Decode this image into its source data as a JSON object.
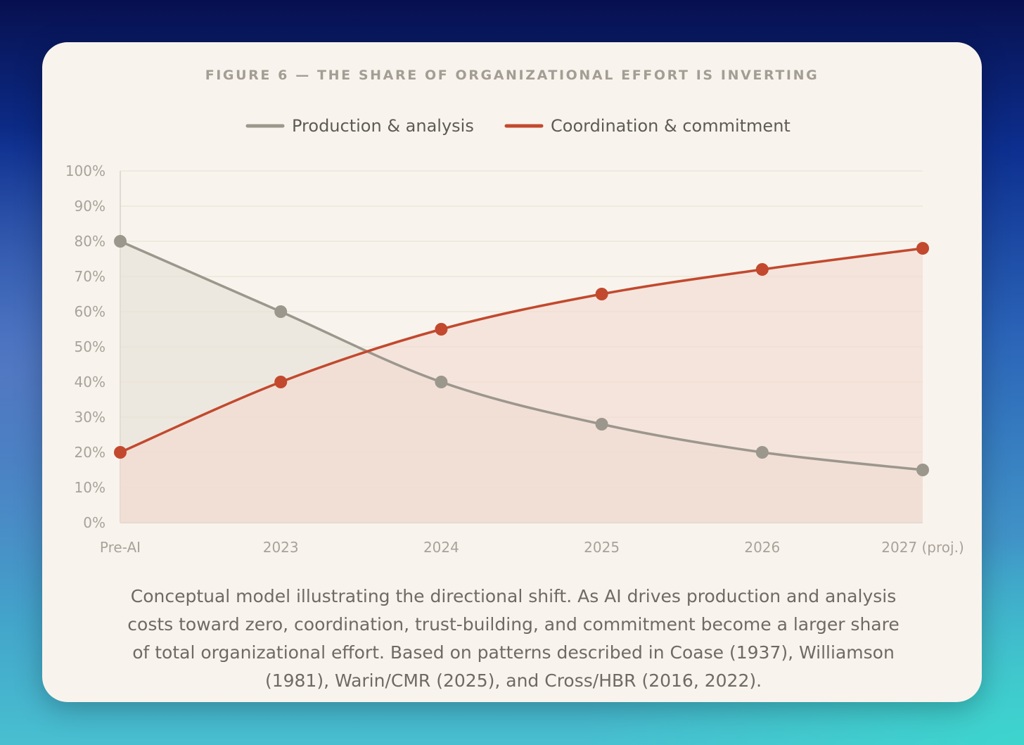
{
  "figure": {
    "title": "FIGURE 6 — THE SHARE OF ORGANIZATIONAL EFFORT IS INVERTING",
    "caption": "Conceptual model illustrating the directional shift. As AI drives production and analysis costs toward zero, coordination, trust-building, and commitment become a larger share of total organizational effort. Based on patterns described in Coase (1937), Williamson (1981), Warin/CMR (2025), and Cross/HBR (2016, 2022)."
  },
  "chart_data": {
    "type": "line",
    "title": "FIGURE 6 — THE SHARE OF ORGANIZATIONAL EFFORT IS INVERTING",
    "categories": [
      "Pre-AI",
      "2023",
      "2024",
      "2025",
      "2026",
      "2027 (proj.)"
    ],
    "series": [
      {
        "name": "Production & analysis",
        "values": [
          80,
          60,
          40,
          28,
          20,
          15
        ],
        "color": "#9c978d",
        "fill": "#e6dfd6"
      },
      {
        "name": "Coordination & commitment",
        "values": [
          20,
          40,
          55,
          65,
          72,
          78
        ],
        "color": "#c2492e",
        "fill": "#f3d9d1"
      }
    ],
    "y_ticks": [
      "0%",
      "10%",
      "20%",
      "30%",
      "40%",
      "50%",
      "60%",
      "70%",
      "80%",
      "90%",
      "100%"
    ],
    "ylim": [
      0,
      100
    ],
    "xlabel": "",
    "ylabel": "",
    "grid": true,
    "legend_position": "top-center"
  },
  "colors": {
    "card_background": "#f8f4ed",
    "grid": "#ece5da",
    "axis": "#d9d1c6",
    "tick_text": "#a8a29a",
    "legend_text": "#5e5a55"
  }
}
